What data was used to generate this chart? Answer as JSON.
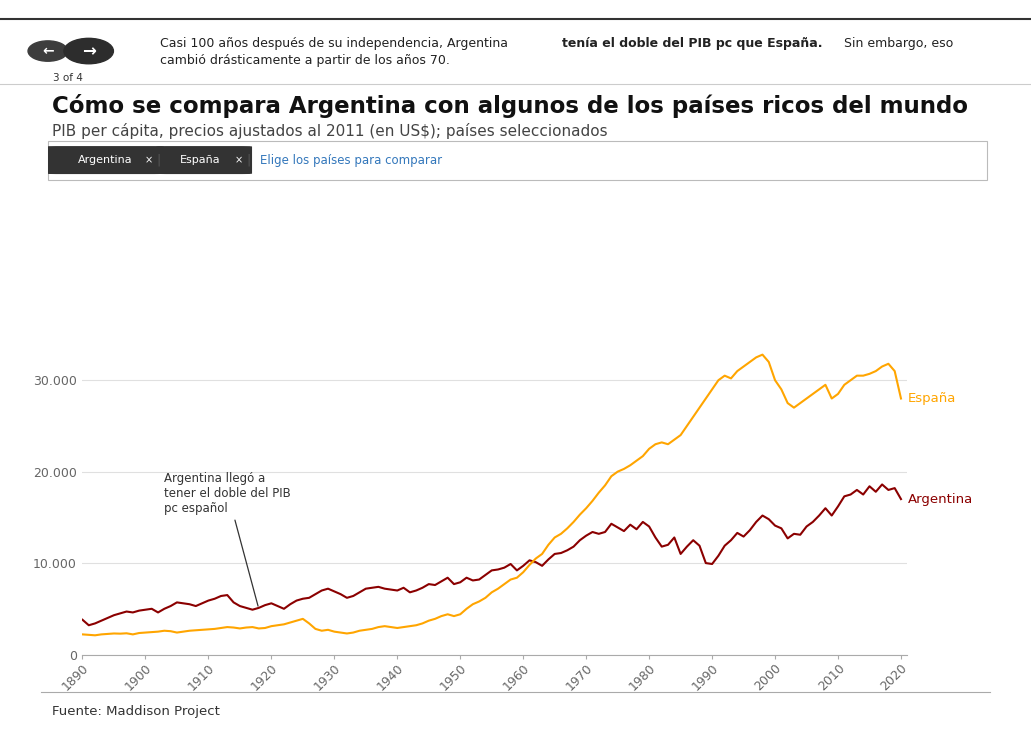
{
  "title": "Cómo se compara Argentina con algunos de los países ricos del mundo",
  "subtitle": "PIB per cápita, precios ajustados al 2011 (en US$); países seleccionados",
  "annotation_text": "Argentina llegó a\ntener el doble del PIB\npc español",
  "annotation_year": 1917,
  "annotation_value": 4800,
  "source_text": "Fuente: Maddison Project",
  "argentina_color": "#8B0000",
  "spain_color": "#FFA500",
  "argentina_label": "Argentina",
  "spain_label": "España",
  "background_color": "#FFFFFF",
  "yticks": [
    0,
    10000,
    20000,
    30000
  ],
  "ytick_labels": [
    "0",
    "10.000",
    "20.000",
    "30.000"
  ],
  "xticks": [
    1890,
    1900,
    1910,
    1920,
    1930,
    1940,
    1950,
    1960,
    1970,
    1980,
    1990,
    2000,
    2010,
    2020
  ],
  "years_argentina": [
    1890,
    1891,
    1892,
    1893,
    1894,
    1895,
    1896,
    1897,
    1898,
    1899,
    1900,
    1901,
    1902,
    1903,
    1904,
    1905,
    1906,
    1907,
    1908,
    1909,
    1910,
    1911,
    1912,
    1913,
    1914,
    1915,
    1916,
    1917,
    1918,
    1919,
    1920,
    1921,
    1922,
    1923,
    1924,
    1925,
    1926,
    1927,
    1928,
    1929,
    1930,
    1931,
    1932,
    1933,
    1934,
    1935,
    1936,
    1937,
    1938,
    1939,
    1940,
    1941,
    1942,
    1943,
    1944,
    1945,
    1946,
    1947,
    1948,
    1949,
    1950,
    1951,
    1952,
    1953,
    1954,
    1955,
    1956,
    1957,
    1958,
    1959,
    1960,
    1961,
    1962,
    1963,
    1964,
    1965,
    1966,
    1967,
    1968,
    1969,
    1970,
    1971,
    1972,
    1973,
    1974,
    1975,
    1976,
    1977,
    1978,
    1979,
    1980,
    1981,
    1982,
    1983,
    1984,
    1985,
    1986,
    1987,
    1988,
    1989,
    1990,
    1991,
    1992,
    1993,
    1994,
    1995,
    1996,
    1997,
    1998,
    1999,
    2000,
    2001,
    2002,
    2003,
    2004,
    2005,
    2006,
    2007,
    2008,
    2009,
    2010,
    2011,
    2012,
    2013,
    2014,
    2015,
    2016,
    2017,
    2018,
    2019,
    2020
  ],
  "values_argentina": [
    3800,
    3200,
    3400,
    3700,
    4000,
    4300,
    4500,
    4700,
    4600,
    4800,
    4900,
    5000,
    4600,
    5000,
    5300,
    5700,
    5600,
    5500,
    5300,
    5600,
    5900,
    6100,
    6400,
    6500,
    5700,
    5300,
    5100,
    4900,
    5100,
    5400,
    5600,
    5300,
    5000,
    5500,
    5900,
    6100,
    6200,
    6600,
    7000,
    7200,
    6900,
    6600,
    6200,
    6400,
    6800,
    7200,
    7300,
    7400,
    7200,
    7100,
    7000,
    7300,
    6800,
    7000,
    7300,
    7700,
    7600,
    8000,
    8400,
    7700,
    7900,
    8400,
    8100,
    8200,
    8700,
    9200,
    9300,
    9500,
    9900,
    9200,
    9700,
    10300,
    10100,
    9700,
    10400,
    11000,
    11100,
    11400,
    11800,
    12500,
    13000,
    13400,
    13200,
    13400,
    14300,
    13900,
    13500,
    14200,
    13700,
    14500,
    14000,
    12800,
    11800,
    12000,
    12800,
    11000,
    11800,
    12500,
    11900,
    10000,
    9900,
    10800,
    11900,
    12500,
    13300,
    12900,
    13600,
    14500,
    15200,
    14800,
    14100,
    13800,
    12700,
    13200,
    13100,
    14000,
    14500,
    15200,
    16000,
    15200,
    16200,
    17300,
    17500,
    18000,
    17500,
    18400,
    17800,
    18600,
    18000,
    18200,
    17000
  ],
  "years_spain": [
    1890,
    1891,
    1892,
    1893,
    1894,
    1895,
    1896,
    1897,
    1898,
    1899,
    1900,
    1901,
    1902,
    1903,
    1904,
    1905,
    1906,
    1907,
    1908,
    1909,
    1910,
    1911,
    1912,
    1913,
    1914,
    1915,
    1916,
    1917,
    1918,
    1919,
    1920,
    1921,
    1922,
    1923,
    1924,
    1925,
    1926,
    1927,
    1928,
    1929,
    1930,
    1931,
    1932,
    1933,
    1934,
    1935,
    1936,
    1937,
    1938,
    1939,
    1940,
    1941,
    1942,
    1943,
    1944,
    1945,
    1946,
    1947,
    1948,
    1949,
    1950,
    1951,
    1952,
    1953,
    1954,
    1955,
    1956,
    1957,
    1958,
    1959,
    1960,
    1961,
    1962,
    1963,
    1964,
    1965,
    1966,
    1967,
    1968,
    1969,
    1970,
    1971,
    1972,
    1973,
    1974,
    1975,
    1976,
    1977,
    1978,
    1979,
    1980,
    1981,
    1982,
    1983,
    1984,
    1985,
    1986,
    1987,
    1988,
    1989,
    1990,
    1991,
    1992,
    1993,
    1994,
    1995,
    1996,
    1997,
    1998,
    1999,
    2000,
    2001,
    2002,
    2003,
    2004,
    2005,
    2006,
    2007,
    2008,
    2009,
    2010,
    2011,
    2012,
    2013,
    2014,
    2015,
    2016,
    2017,
    2018,
    2019,
    2020
  ],
  "values_spain": [
    2200,
    2150,
    2100,
    2200,
    2250,
    2300,
    2280,
    2320,
    2200,
    2350,
    2400,
    2450,
    2500,
    2600,
    2550,
    2400,
    2500,
    2600,
    2650,
    2700,
    2750,
    2800,
    2900,
    3000,
    2950,
    2850,
    2950,
    3000,
    2850,
    2900,
    3100,
    3200,
    3300,
    3500,
    3700,
    3900,
    3400,
    2800,
    2600,
    2700,
    2500,
    2400,
    2300,
    2400,
    2600,
    2700,
    2800,
    3000,
    3100,
    3000,
    2900,
    3000,
    3100,
    3200,
    3400,
    3700,
    3900,
    4200,
    4400,
    4200,
    4400,
    5000,
    5500,
    5800,
    6200,
    6800,
    7200,
    7700,
    8200,
    8400,
    9000,
    9800,
    10500,
    11000,
    12000,
    12800,
    13200,
    13800,
    14500,
    15300,
    16000,
    16800,
    17700,
    18500,
    19500,
    20000,
    20300,
    20700,
    21200,
    21700,
    22500,
    23000,
    23200,
    23000,
    23500,
    24000,
    25000,
    26000,
    27000,
    28000,
    29000,
    30000,
    30500,
    30200,
    31000,
    31500,
    32000,
    32500,
    32800,
    32000,
    30000,
    29000,
    27500,
    27000,
    27500,
    28000,
    28500,
    29000,
    29500,
    28000,
    28500,
    29500,
    30000,
    30500,
    30500,
    30700,
    31000,
    31500,
    31800,
    31000,
    28000
  ]
}
